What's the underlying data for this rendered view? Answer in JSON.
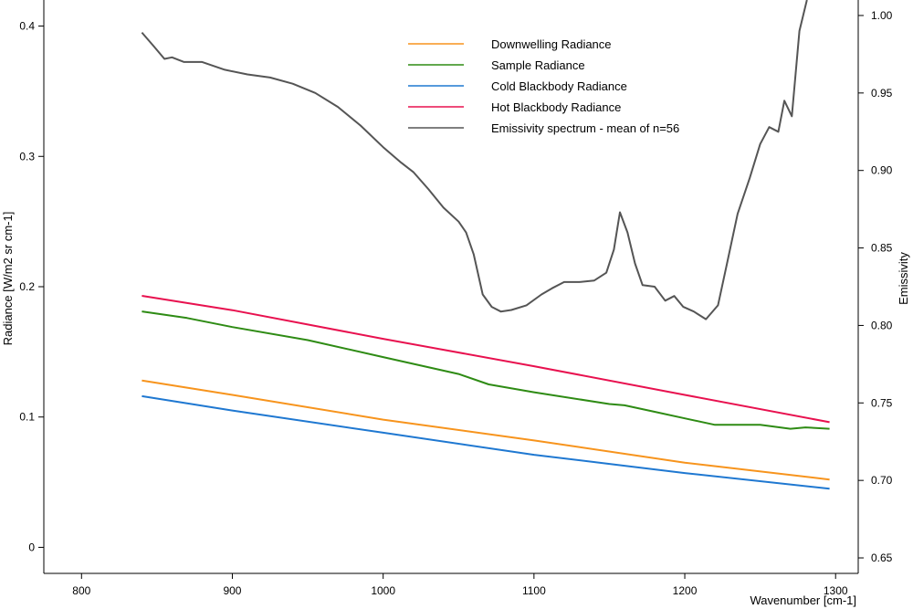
{
  "chart_data": {
    "type": "line",
    "xlabel": "Wavenumber [cm-1]",
    "ylabel": "Radiance [W/m2 sr cm-1]",
    "y2label": "Emissivity",
    "xlim": [
      775,
      1315
    ],
    "ylim": [
      -0.02,
      0.42
    ],
    "y2lim": [
      0.64,
      1.01
    ],
    "xticks": [
      800,
      900,
      1000,
      1100,
      1200,
      1300
    ],
    "yticks": [
      0,
      0.1,
      0.2,
      0.3,
      0.4
    ],
    "y2ticks": [
      0.65,
      0.7,
      0.75,
      0.8,
      0.85,
      0.9,
      0.95,
      1.0
    ],
    "xtick_labels": [
      "800",
      "900",
      "1000",
      "1100",
      "1200",
      "1300"
    ],
    "ytick_labels": [
      "0",
      "0.1",
      "0.2",
      "0.3",
      "0.4"
    ],
    "y2tick_labels": [
      "0.65",
      "0.70",
      "0.75",
      "0.80",
      "0.85",
      "0.90",
      "0.95",
      "1.00"
    ],
    "legend_position": "top-center",
    "grid": false,
    "series": [
      {
        "name": "Downwelling Radiance",
        "color": "#f7941d",
        "axis": "left",
        "points": [
          [
            840,
            0.128
          ],
          [
            900,
            0.117
          ],
          [
            1000,
            0.098
          ],
          [
            1100,
            0.082
          ],
          [
            1200,
            0.065
          ],
          [
            1296,
            0.052
          ]
        ]
      },
      {
        "name": "Sample Radiance",
        "color": "#2e8b14",
        "axis": "left",
        "points": [
          [
            840,
            0.181
          ],
          [
            870,
            0.176
          ],
          [
            900,
            0.169
          ],
          [
            950,
            0.159
          ],
          [
            1000,
            0.146
          ],
          [
            1050,
            0.133
          ],
          [
            1070,
            0.125
          ],
          [
            1100,
            0.119
          ],
          [
            1150,
            0.11
          ],
          [
            1160,
            0.109
          ],
          [
            1180,
            0.104
          ],
          [
            1200,
            0.099
          ],
          [
            1220,
            0.094
          ],
          [
            1250,
            0.094
          ],
          [
            1270,
            0.091
          ],
          [
            1280,
            0.092
          ],
          [
            1296,
            0.091
          ]
        ]
      },
      {
        "name": "Cold Blackbody Radiance",
        "color": "#1f78d1",
        "axis": "left",
        "points": [
          [
            840,
            0.116
          ],
          [
            900,
            0.105
          ],
          [
            1000,
            0.088
          ],
          [
            1100,
            0.071
          ],
          [
            1200,
            0.057
          ],
          [
            1296,
            0.045
          ]
        ]
      },
      {
        "name": "Hot Blackbody Radiance",
        "color": "#e8114f",
        "axis": "left",
        "points": [
          [
            840,
            0.193
          ],
          [
            900,
            0.182
          ],
          [
            1000,
            0.16
          ],
          [
            1100,
            0.139
          ],
          [
            1200,
            0.117
          ],
          [
            1296,
            0.096
          ]
        ]
      },
      {
        "name": "Emissivity spectrum - mean of n=56",
        "color": "#555555",
        "axis": "right",
        "points": [
          [
            840,
            0.989
          ],
          [
            848,
            0.98
          ],
          [
            855,
            0.972
          ],
          [
            860,
            0.973
          ],
          [
            868,
            0.97
          ],
          [
            880,
            0.97
          ],
          [
            895,
            0.965
          ],
          [
            910,
            0.962
          ],
          [
            925,
            0.96
          ],
          [
            940,
            0.956
          ],
          [
            955,
            0.95
          ],
          [
            970,
            0.941
          ],
          [
            985,
            0.929
          ],
          [
            1000,
            0.915
          ],
          [
            1012,
            0.905
          ],
          [
            1020,
            0.899
          ],
          [
            1030,
            0.888
          ],
          [
            1040,
            0.876
          ],
          [
            1050,
            0.867
          ],
          [
            1055,
            0.86
          ],
          [
            1060,
            0.846
          ],
          [
            1066,
            0.82
          ],
          [
            1072,
            0.812
          ],
          [
            1078,
            0.809
          ],
          [
            1085,
            0.81
          ],
          [
            1095,
            0.813
          ],
          [
            1105,
            0.82
          ],
          [
            1112,
            0.824
          ],
          [
            1120,
            0.828
          ],
          [
            1130,
            0.828
          ],
          [
            1140,
            0.829
          ],
          [
            1148,
            0.834
          ],
          [
            1153,
            0.849
          ],
          [
            1157,
            0.873
          ],
          [
            1162,
            0.86
          ],
          [
            1167,
            0.84
          ],
          [
            1172,
            0.826
          ],
          [
            1180,
            0.825
          ],
          [
            1187,
            0.816
          ],
          [
            1193,
            0.819
          ],
          [
            1199,
            0.812
          ],
          [
            1206,
            0.809
          ],
          [
            1214,
            0.804
          ],
          [
            1222,
            0.813
          ],
          [
            1228,
            0.84
          ],
          [
            1235,
            0.872
          ],
          [
            1243,
            0.895
          ],
          [
            1250,
            0.917
          ],
          [
            1256,
            0.928
          ],
          [
            1262,
            0.925
          ],
          [
            1266,
            0.945
          ],
          [
            1271,
            0.935
          ],
          [
            1276,
            0.99
          ],
          [
            1281,
            1.01
          ]
        ]
      }
    ]
  }
}
